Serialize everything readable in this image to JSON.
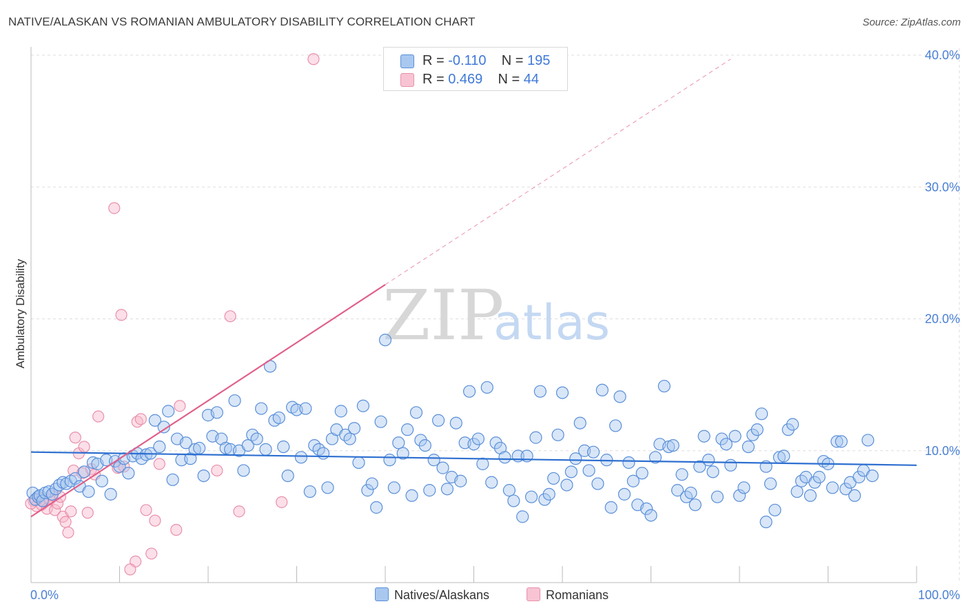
{
  "title": "NATIVE/ALASKAN VS ROMANIAN AMBULATORY DISABILITY CORRELATION CHART",
  "source": "Source: ZipAtlas.com",
  "watermark": {
    "zip": "ZIP",
    "atlas": "atlas"
  },
  "legend_top": {
    "rows": [
      {
        "r_label": "R =",
        "r_value": "-0.110",
        "n_label": "N =",
        "n_value": "195"
      },
      {
        "r_label": "R =",
        "r_value": "0.469",
        "n_label": "N =",
        "n_value": "44"
      }
    ]
  },
  "legend_bottom": [
    "Natives/Alaskans",
    "Romanians"
  ],
  "colors": {
    "blue_fill": "#a8c8f0",
    "blue_stroke": "#5a8fd8",
    "blue_line": "#2d6fd0",
    "pink_fill": "#f8b8cc",
    "pink_stroke": "#e890aa",
    "pink_line": "#e0608a",
    "grid": "#dddddd",
    "axis_text": "#4a7fd4"
  },
  "chart_data": {
    "type": "scatter",
    "title": "NATIVE/ALASKAN VS ROMANIAN AMBULATORY DISABILITY CORRELATION CHART",
    "xlabel": "",
    "ylabel": "Ambulatory Disability",
    "xlim": [
      0,
      100
    ],
    "ylim": [
      0,
      40
    ],
    "x_tick_labels": [
      "0.0%",
      "100.0%"
    ],
    "y_ticks": [
      10,
      20,
      30,
      40
    ],
    "y_tick_labels": [
      "10.0%",
      "20.0%",
      "30.0%",
      "40.0%"
    ],
    "grid": true,
    "legend_position": "top-center",
    "series": [
      {
        "name": "Natives/Alaskans",
        "r": -0.11,
        "n": 195,
        "trend": {
          "x": [
            0,
            100
          ],
          "y": [
            9.9,
            8.9
          ]
        },
        "points": [
          [
            0.2,
            6.8
          ],
          [
            0.5,
            6.3
          ],
          [
            0.8,
            6.5
          ],
          [
            1.0,
            6.6
          ],
          [
            1.3,
            6.2
          ],
          [
            1.6,
            6.8
          ],
          [
            2.0,
            6.9
          ],
          [
            2.4,
            6.7
          ],
          [
            2.8,
            7.1
          ],
          [
            3.2,
            7.4
          ],
          [
            3.6,
            7.6
          ],
          [
            4.0,
            7.5
          ],
          [
            4.5,
            7.7
          ],
          [
            5.0,
            7.9
          ],
          [
            5.5,
            7.3
          ],
          [
            6.0,
            8.4
          ],
          [
            6.5,
            6.9
          ],
          [
            7.0,
            9.1
          ],
          [
            7.5,
            9.0
          ],
          [
            8.0,
            7.7
          ],
          [
            8.5,
            9.3
          ],
          [
            9.0,
            6.7
          ],
          [
            9.5,
            9.2
          ],
          [
            10.0,
            8.8
          ],
          [
            10.5,
            9.4
          ],
          [
            11.0,
            8.3
          ],
          [
            11.5,
            9.6
          ],
          [
            12.0,
            9.8
          ],
          [
            12.5,
            9.4
          ],
          [
            13.0,
            9.7
          ],
          [
            13.5,
            9.8
          ],
          [
            14.0,
            12.3
          ],
          [
            14.5,
            10.3
          ],
          [
            15.0,
            11.8
          ],
          [
            15.5,
            13.0
          ],
          [
            16.0,
            7.8
          ],
          [
            16.5,
            10.9
          ],
          [
            17.0,
            9.3
          ],
          [
            17.5,
            10.6
          ],
          [
            18.0,
            9.4
          ],
          [
            18.5,
            10.1
          ],
          [
            19.0,
            10.2
          ],
          [
            19.5,
            8.1
          ],
          [
            20.0,
            12.7
          ],
          [
            20.5,
            11.1
          ],
          [
            21.0,
            12.9
          ],
          [
            21.5,
            10.9
          ],
          [
            22.0,
            10.2
          ],
          [
            22.5,
            10.1
          ],
          [
            23.0,
            13.8
          ],
          [
            23.5,
            10.0
          ],
          [
            24.0,
            8.5
          ],
          [
            24.5,
            10.4
          ],
          [
            25.0,
            11.2
          ],
          [
            25.5,
            10.9
          ],
          [
            26.0,
            13.2
          ],
          [
            26.5,
            10.1
          ],
          [
            27.0,
            16.4
          ],
          [
            27.5,
            12.3
          ],
          [
            28.0,
            12.5
          ],
          [
            28.5,
            10.3
          ],
          [
            29.0,
            8.1
          ],
          [
            29.5,
            13.3
          ],
          [
            30.0,
            13.1
          ],
          [
            30.5,
            9.5
          ],
          [
            31.0,
            13.2
          ],
          [
            31.5,
            6.9
          ],
          [
            32.0,
            10.4
          ],
          [
            32.5,
            10.1
          ],
          [
            33.0,
            9.8
          ],
          [
            33.5,
            7.2
          ],
          [
            34.0,
            10.9
          ],
          [
            34.5,
            11.6
          ],
          [
            35.0,
            13.0
          ],
          [
            35.5,
            11.2
          ],
          [
            36.0,
            10.9
          ],
          [
            36.5,
            11.7
          ],
          [
            37.0,
            9.1
          ],
          [
            37.5,
            13.4
          ],
          [
            38.0,
            7.0
          ],
          [
            38.5,
            7.5
          ],
          [
            39.0,
            5.7
          ],
          [
            39.5,
            12.2
          ],
          [
            40.0,
            18.4
          ],
          [
            40.5,
            9.3
          ],
          [
            41.0,
            7.2
          ],
          [
            41.5,
            10.6
          ],
          [
            42.0,
            9.8
          ],
          [
            42.5,
            11.6
          ],
          [
            43.0,
            6.6
          ],
          [
            43.5,
            12.9
          ],
          [
            44.0,
            10.8
          ],
          [
            44.5,
            10.4
          ],
          [
            45.0,
            7.0
          ],
          [
            45.5,
            9.3
          ],
          [
            46.0,
            12.3
          ],
          [
            46.5,
            8.7
          ],
          [
            47.0,
            7.1
          ],
          [
            47.5,
            8.0
          ],
          [
            48.0,
            12.1
          ],
          [
            48.5,
            7.7
          ],
          [
            49.0,
            10.6
          ],
          [
            49.5,
            14.5
          ],
          [
            50.0,
            10.5
          ],
          [
            50.5,
            10.9
          ],
          [
            51.0,
            9.0
          ],
          [
            51.5,
            14.8
          ],
          [
            52.0,
            7.6
          ],
          [
            52.5,
            10.6
          ],
          [
            53.0,
            10.2
          ],
          [
            53.5,
            9.5
          ],
          [
            54.0,
            7.0
          ],
          [
            54.5,
            6.2
          ],
          [
            55.0,
            9.6
          ],
          [
            55.5,
            5.0
          ],
          [
            56.0,
            9.6
          ],
          [
            56.5,
            6.5
          ],
          [
            57.0,
            11.0
          ],
          [
            57.5,
            14.5
          ],
          [
            58.0,
            6.3
          ],
          [
            58.5,
            6.7
          ],
          [
            59.0,
            7.9
          ],
          [
            59.5,
            11.2
          ],
          [
            60.0,
            14.4
          ],
          [
            60.5,
            7.4
          ],
          [
            61.0,
            8.4
          ],
          [
            61.5,
            9.4
          ],
          [
            62.0,
            12.1
          ],
          [
            62.5,
            10.0
          ],
          [
            63.0,
            8.5
          ],
          [
            63.5,
            9.9
          ],
          [
            64.0,
            7.5
          ],
          [
            64.5,
            14.6
          ],
          [
            65.0,
            9.3
          ],
          [
            65.5,
            5.7
          ],
          [
            66.0,
            11.9
          ],
          [
            66.5,
            14.1
          ],
          [
            67.0,
            6.7
          ],
          [
            67.5,
            9.1
          ],
          [
            68.0,
            7.7
          ],
          [
            68.5,
            5.9
          ],
          [
            69.0,
            8.3
          ],
          [
            69.5,
            5.6
          ],
          [
            70.0,
            5.1
          ],
          [
            70.5,
            9.5
          ],
          [
            71.0,
            10.5
          ],
          [
            71.5,
            14.9
          ],
          [
            72.0,
            10.3
          ],
          [
            72.5,
            10.4
          ],
          [
            73.0,
            7.0
          ],
          [
            73.5,
            8.2
          ],
          [
            74.0,
            6.5
          ],
          [
            74.5,
            6.8
          ],
          [
            75.0,
            5.9
          ],
          [
            75.5,
            8.8
          ],
          [
            76.0,
            11.1
          ],
          [
            76.5,
            9.3
          ],
          [
            77.0,
            8.4
          ],
          [
            77.5,
            6.5
          ],
          [
            78.0,
            10.9
          ],
          [
            78.5,
            10.5
          ],
          [
            79.0,
            8.9
          ],
          [
            79.5,
            11.1
          ],
          [
            80.0,
            6.6
          ],
          [
            80.5,
            7.2
          ],
          [
            81.0,
            10.3
          ],
          [
            81.5,
            11.2
          ],
          [
            82.0,
            11.6
          ],
          [
            82.5,
            12.8
          ],
          [
            83.0,
            8.8
          ],
          [
            83.5,
            7.5
          ],
          [
            84.0,
            5.5
          ],
          [
            84.5,
            9.5
          ],
          [
            85.0,
            9.6
          ],
          [
            85.5,
            11.6
          ],
          [
            86.0,
            12.0
          ],
          [
            86.5,
            6.9
          ],
          [
            87.0,
            7.7
          ],
          [
            87.5,
            8.0
          ],
          [
            88.0,
            6.6
          ],
          [
            88.5,
            7.6
          ],
          [
            89.0,
            8.0
          ],
          [
            89.5,
            9.2
          ],
          [
            90.0,
            9.0
          ],
          [
            90.5,
            7.2
          ],
          [
            91.0,
            10.7
          ],
          [
            91.5,
            10.7
          ],
          [
            92.0,
            7.1
          ],
          [
            92.5,
            7.6
          ],
          [
            93.0,
            6.6
          ],
          [
            93.5,
            8.0
          ],
          [
            94.0,
            8.5
          ],
          [
            94.5,
            10.8
          ],
          [
            95.0,
            8.1
          ],
          [
            83.0,
            4.6
          ]
        ]
      },
      {
        "name": "Romanians",
        "r": 0.469,
        "n": 44,
        "trend": {
          "x": [
            0,
            40
          ],
          "y": [
            5.0,
            22.6
          ]
        },
        "trend_dashed": {
          "x": [
            40,
            79
          ],
          "y": [
            22.6,
            39.7
          ]
        },
        "points": [
          [
            0.3,
            6.2
          ],
          [
            0.6,
            5.8
          ],
          [
            0.9,
            6.4
          ],
          [
            1.2,
            5.9
          ],
          [
            1.5,
            6.1
          ],
          [
            1.8,
            5.6
          ],
          [
            2.1,
            6.3
          ],
          [
            2.4,
            6.6
          ],
          [
            2.7,
            5.5
          ],
          [
            3.0,
            6.0
          ],
          [
            3.3,
            6.5
          ],
          [
            3.6,
            5.0
          ],
          [
            3.9,
            4.6
          ],
          [
            4.2,
            3.8
          ],
          [
            4.5,
            5.4
          ],
          [
            4.8,
            8.5
          ],
          [
            5.0,
            11.0
          ],
          [
            5.4,
            9.8
          ],
          [
            5.8,
            8.3
          ],
          [
            6.0,
            10.3
          ],
          [
            6.4,
            5.3
          ],
          [
            6.8,
            8.6
          ],
          [
            7.2,
            8.2
          ],
          [
            7.6,
            12.6
          ],
          [
            9.4,
            28.4
          ],
          [
            9.8,
            8.7
          ],
          [
            10.2,
            20.3
          ],
          [
            10.5,
            8.8
          ],
          [
            11.8,
            1.6
          ],
          [
            12.0,
            12.2
          ],
          [
            12.4,
            12.4
          ],
          [
            13.0,
            5.5
          ],
          [
            13.6,
            2.2
          ],
          [
            14.0,
            4.7
          ],
          [
            14.5,
            9.0
          ],
          [
            16.4,
            4.0
          ],
          [
            16.8,
            13.4
          ],
          [
            21.0,
            8.5
          ],
          [
            22.5,
            20.2
          ],
          [
            23.5,
            5.4
          ],
          [
            28.3,
            6.1
          ],
          [
            31.9,
            39.7
          ],
          [
            11.2,
            1.0
          ],
          [
            0.0,
            6.0
          ]
        ]
      }
    ]
  }
}
